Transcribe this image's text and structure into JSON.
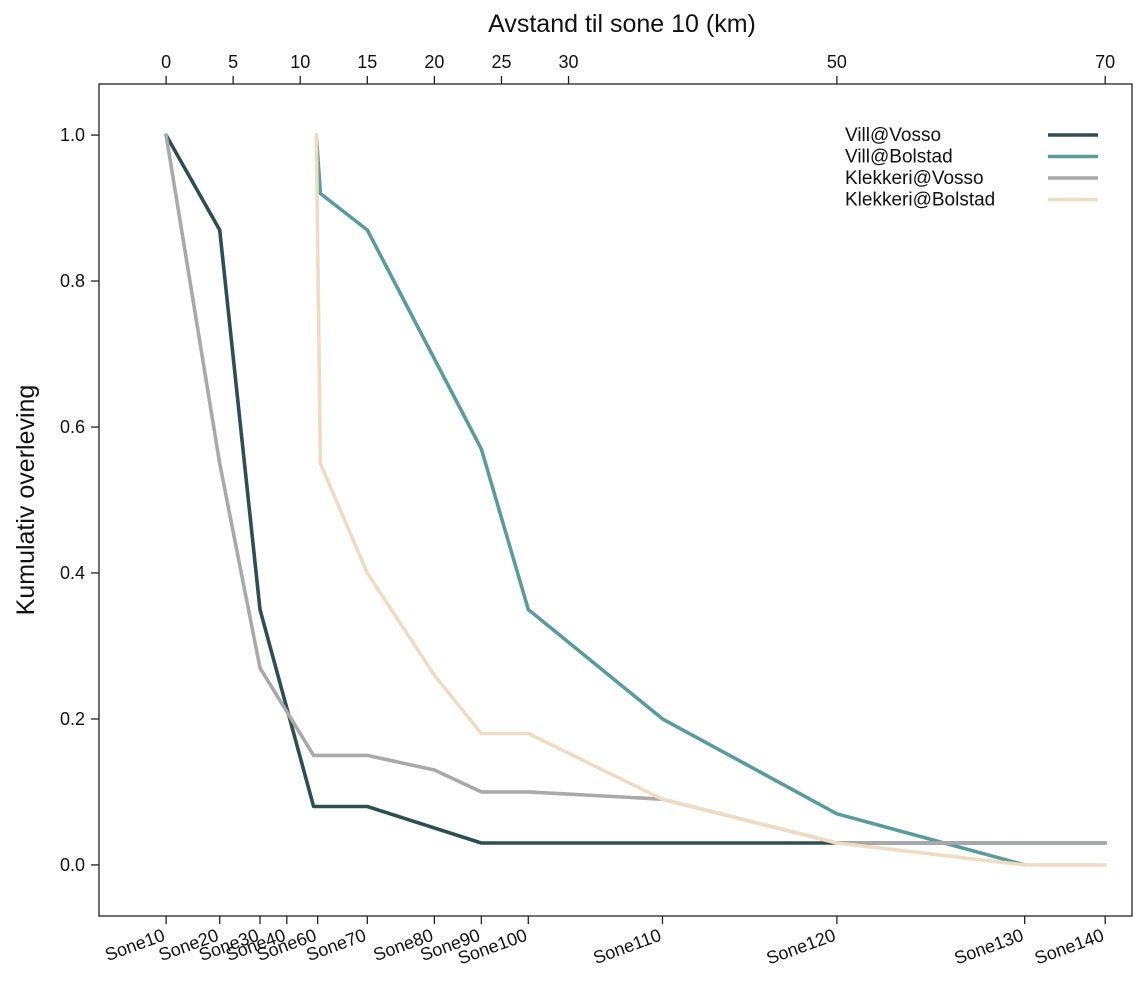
{
  "chart_data": {
    "type": "line",
    "title": "",
    "xlabel_top": "Avstand til sone 10 (km)",
    "ylabel": "Kumulativ overleving",
    "xlim": [
      -5,
      72
    ],
    "ylim": [
      -0.07,
      1.07
    ],
    "top_ticks": [
      0,
      5,
      10,
      15,
      20,
      25,
      30,
      50,
      70
    ],
    "y_ticks": [
      "0.0",
      "0.2",
      "0.4",
      "0.6",
      "0.8",
      "1.0"
    ],
    "zones": [
      {
        "name": "Sone10",
        "km": 0
      },
      {
        "name": "Sone20",
        "km": 4
      },
      {
        "name": "Sone30",
        "km": 7
      },
      {
        "name": "Sone40",
        "km": 9
      },
      {
        "name": "Sone60",
        "km": 11.3
      },
      {
        "name": "Sone70",
        "km": 15
      },
      {
        "name": "Sone80",
        "km": 20
      },
      {
        "name": "Sone90",
        "km": 23.5
      },
      {
        "name": "Sone100",
        "km": 27
      },
      {
        "name": "Sone110",
        "km": 37
      },
      {
        "name": "Sone120",
        "km": 50
      },
      {
        "name": "Sone130",
        "km": 64
      },
      {
        "name": "Sone140",
        "km": 70
      }
    ],
    "grid": false,
    "legend_position": "top-right",
    "series": [
      {
        "name": "Vill@Vosso",
        "color": "#2e4f50",
        "x": [
          0,
          4,
          7,
          11,
          15,
          23.5,
          50,
          70
        ],
        "y": [
          1.0,
          0.87,
          0.35,
          0.08,
          0.08,
          0.03,
          0.03,
          0.03
        ]
      },
      {
        "name": "Vill@Bolstad",
        "color": "#5a9c9c",
        "x": [
          11.2,
          11.5,
          15,
          23.5,
          27,
          37,
          50,
          64
        ],
        "y": [
          1.0,
          0.92,
          0.87,
          0.57,
          0.35,
          0.2,
          0.07,
          0.0
        ]
      },
      {
        "name": "Klekkeri@Vosso",
        "color": "#a9a9a9",
        "x": [
          0,
          4,
          7,
          11,
          15,
          20,
          23.5,
          27,
          37,
          50,
          70
        ],
        "y": [
          1.0,
          0.55,
          0.27,
          0.15,
          0.15,
          0.13,
          0.1,
          0.1,
          0.09,
          0.03,
          0.03
        ]
      },
      {
        "name": "Klekkeri@Bolstad",
        "color": "#efdcc3",
        "x": [
          11.2,
          11.5,
          15,
          20,
          23.5,
          27,
          37,
          50,
          64,
          70
        ],
        "y": [
          1.0,
          0.55,
          0.4,
          0.26,
          0.18,
          0.18,
          0.09,
          0.03,
          0.0,
          0.0
        ]
      }
    ]
  }
}
